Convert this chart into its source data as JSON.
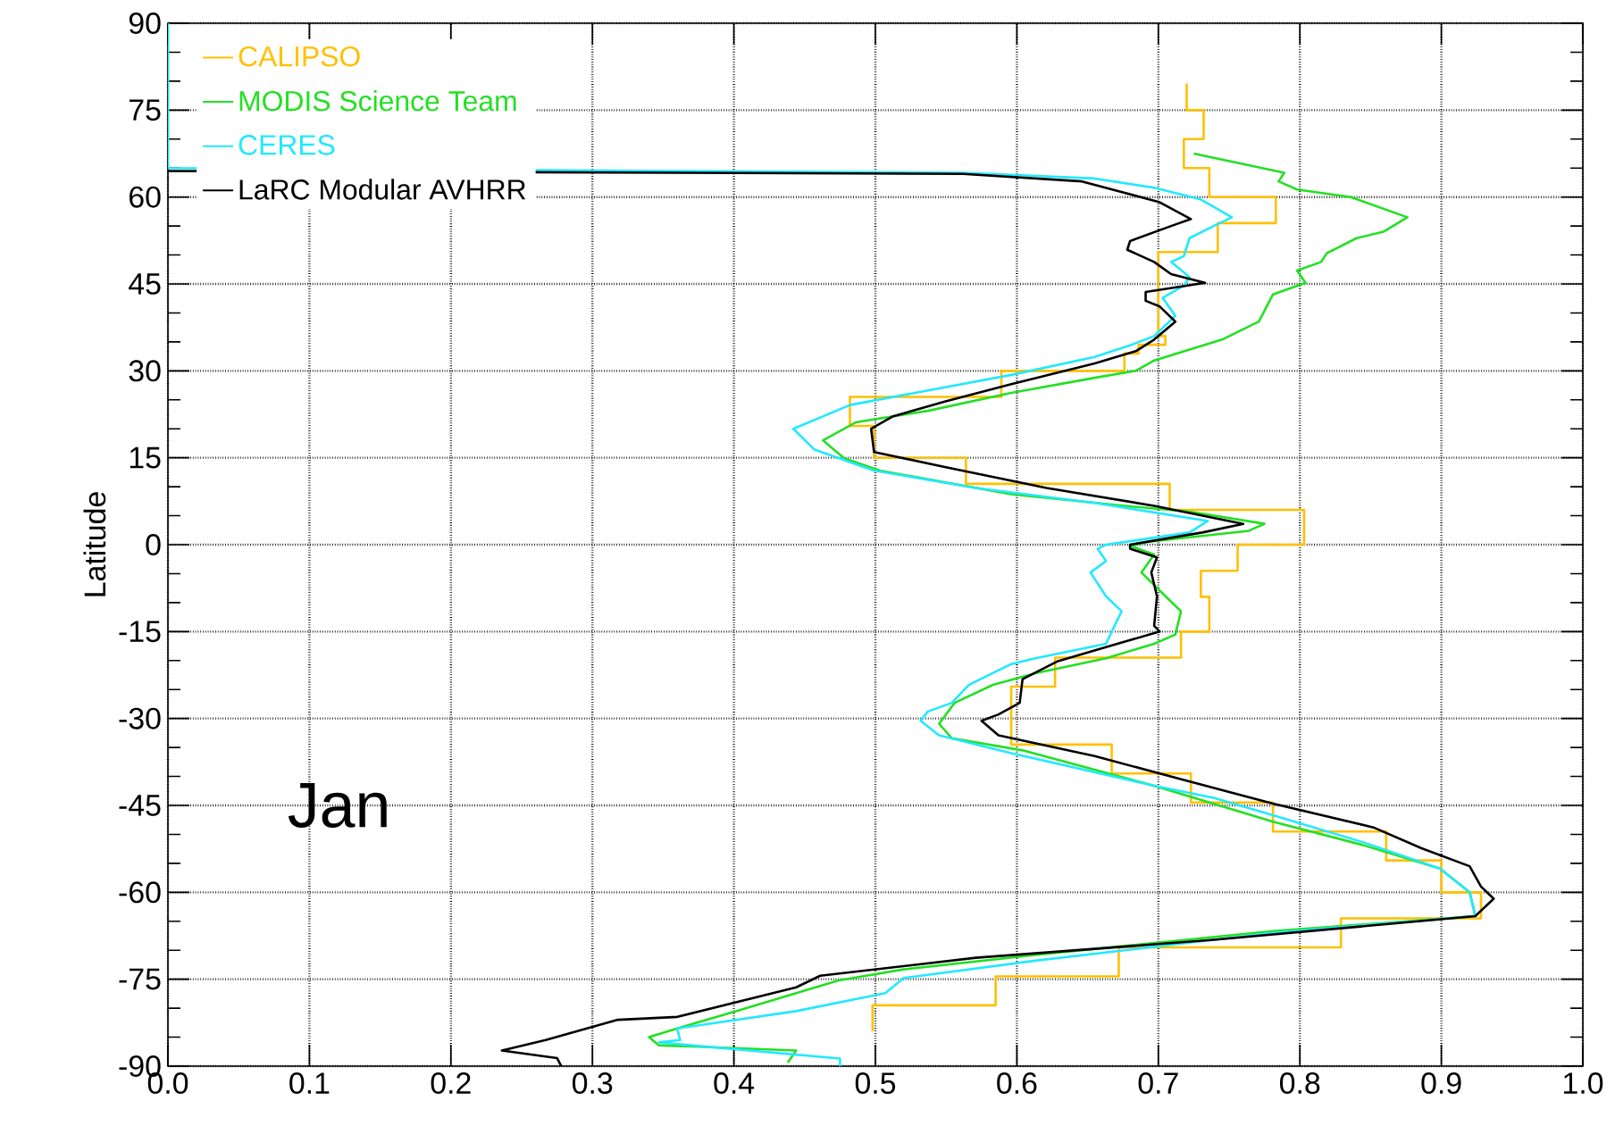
{
  "chart_data": {
    "type": "line",
    "ylabel": "Latitude",
    "annotations": [
      "Jan"
    ],
    "xlim": [
      0,
      1
    ],
    "ylim": [
      -90,
      90
    ],
    "xticks": [
      {
        "value": 0,
        "label": "0.0"
      },
      {
        "value": 0.1,
        "label": "0.1"
      },
      {
        "value": 0.2,
        "label": "0.2"
      },
      {
        "value": 0.3,
        "label": "0.3"
      },
      {
        "value": 0.4,
        "label": "0.4"
      },
      {
        "value": 0.5,
        "label": "0.5"
      },
      {
        "value": 0.6,
        "label": "0.6"
      },
      {
        "value": 0.7,
        "label": "0.7"
      },
      {
        "value": 0.8,
        "label": "0.8"
      },
      {
        "value": 0.9,
        "label": "0.9"
      },
      {
        "value": 1,
        "label": "1.0"
      }
    ],
    "yticks": [
      -90,
      -75,
      -60,
      -45,
      -30,
      -15,
      0,
      15,
      30,
      45,
      60,
      75,
      90
    ],
    "grid": true,
    "legend": "top left",
    "marker": "none",
    "line_style": "solid",
    "series": [
      {
        "name": "CALIPSO",
        "color": "#ffc000",
        "x": [
          0.72,
          0.72,
          0.732,
          0.732,
          0.718,
          0.718,
          0.736,
          0.736,
          0.783,
          0.783,
          0.742,
          0.742,
          0.7,
          0.7,
          0.705,
          0.705,
          0.686,
          0.686,
          0.676,
          0.676,
          0.589,
          0.589,
          0.482,
          0.482,
          0.499,
          0.499,
          0.564,
          0.564,
          0.708,
          0.708,
          0.803,
          0.803,
          0.756,
          0.756,
          0.73,
          0.73,
          0.736,
          0.736,
          0.716,
          0.716,
          0.627,
          0.627,
          0.596,
          0.596,
          0.667,
          0.667,
          0.723,
          0.723,
          0.781,
          0.781,
          0.861,
          0.861,
          0.9,
          0.9,
          0.928,
          0.928,
          0.829,
          0.829,
          0.672,
          0.672,
          0.585,
          0.585,
          0.498,
          0.498
        ],
        "values": [
          79.6,
          75,
          75,
          70,
          70,
          65,
          65,
          60,
          60,
          55.5,
          55.5,
          50.5,
          50.5,
          36,
          36,
          34.5,
          34.5,
          33,
          33,
          30,
          30,
          25.5,
          25.5,
          20.5,
          20.5,
          15,
          15,
          10.5,
          10.5,
          6,
          6,
          0,
          0,
          -4.5,
          -4.5,
          -9,
          -9,
          -15,
          -15,
          -19.5,
          -19.5,
          -24.5,
          -24.5,
          -34.5,
          -34.5,
          -39.5,
          -39.5,
          -44.5,
          -44.5,
          -49.5,
          -49.5,
          -54.5,
          -54.5,
          -60,
          -60,
          -64.5,
          -64.5,
          -69.5,
          -69.5,
          -74.5,
          -74.5,
          -79.5,
          -79.5,
          -84
        ]
      },
      {
        "name": "MODIS Science Team",
        "color": "#22e022",
        "x": [
          0.725,
          0.789,
          0.785,
          0.798,
          0.836,
          0.876,
          0.859,
          0.84,
          0.819,
          0.815,
          0.798,
          0.804,
          0.781,
          0.771,
          0.745,
          0.697,
          0.684,
          0.655,
          0.596,
          0.537,
          0.486,
          0.463,
          0.478,
          0.503,
          0.596,
          0.676,
          0.722,
          0.775,
          0.764,
          0.693,
          0.68,
          0.697,
          0.688,
          0.705,
          0.716,
          0.712,
          0.697,
          0.663,
          0.613,
          0.583,
          0.556,
          0.545,
          0.554,
          0.604,
          0.697,
          0.781,
          0.844,
          0.899,
          0.92,
          0.924,
          0.781,
          0.613,
          0.52,
          0.474,
          0.444,
          0.402,
          0.36,
          0.34,
          0.347,
          0.444,
          0.438
        ],
        "values": [
          67.5,
          64.2,
          62.7,
          61.3,
          60,
          56.5,
          54,
          52.9,
          50.3,
          48.8,
          47.3,
          45.2,
          43.2,
          38.5,
          35.4,
          31.8,
          30,
          28.8,
          26.2,
          23.1,
          21.1,
          18,
          14.9,
          12.8,
          8.7,
          6.7,
          5.7,
          3.6,
          2.4,
          0.5,
          -0.2,
          -1.7,
          -4.8,
          -8.9,
          -11.5,
          -15.5,
          -17.1,
          -19.6,
          -22.2,
          -24.2,
          -27.3,
          -30.9,
          -33.4,
          -35.5,
          -41.6,
          -47.8,
          -51.8,
          -55.9,
          -60,
          -64.1,
          -66.7,
          -70.8,
          -73.3,
          -75.2,
          -77.4,
          -80.5,
          -83.5,
          -85,
          -86.4,
          -87.3,
          -89.4
        ]
      },
      {
        "name": "CERES",
        "color": "#22e8ff",
        "x": [
          0,
          0,
          0.562,
          0.655,
          0.697,
          0.73,
          0.752,
          0.739,
          0.722,
          0.718,
          0.709,
          0.722,
          0.718,
          0.703,
          0.712,
          0.697,
          0.68,
          0.655,
          0.596,
          0.528,
          0.482,
          0.442,
          0.457,
          0.499,
          0.571,
          0.655,
          0.735,
          0.722,
          0.663,
          0.657,
          0.663,
          0.652,
          0.663,
          0.674,
          0.669,
          0.663,
          0.613,
          0.596,
          0.566,
          0.554,
          0.537,
          0.532,
          0.545,
          0.596,
          0.697,
          0.739,
          0.781,
          0.844,
          0.899,
          0.92,
          0.924,
          0.781,
          0.613,
          0.52,
          0.507,
          0.444,
          0.36,
          0.362,
          0.347,
          0.475,
          0.475
        ],
        "values": [
          90,
          65,
          64.2,
          63.2,
          61.6,
          59.6,
          56.5,
          55,
          52.9,
          49.8,
          48.8,
          46.2,
          44.7,
          42.6,
          39.5,
          36,
          34.4,
          32.4,
          29.3,
          26.2,
          24.1,
          20,
          16.4,
          12.8,
          9.8,
          7.2,
          4.1,
          2.1,
          0,
          -0.7,
          -2.8,
          -4.8,
          -8.9,
          -11.5,
          -14,
          -17.1,
          -19.6,
          -20.6,
          -24.2,
          -27.3,
          -28.8,
          -30.4,
          -32.9,
          -36,
          -41.6,
          -43.7,
          -46.7,
          -51.3,
          -55.9,
          -60,
          -64.1,
          -67,
          -71.8,
          -74.8,
          -77.4,
          -80.5,
          -83.5,
          -85.5,
          -85.9,
          -88.7,
          -90
        ]
      },
      {
        "name": "LaRC Modular AVHRR",
        "color": "#000000",
        "x": [
          0,
          0.562,
          0.646,
          0.701,
          0.723,
          0.709,
          0.68,
          0.678,
          0.697,
          0.709,
          0.733,
          0.691,
          0.691,
          0.701,
          0.712,
          0.697,
          0.684,
          0.655,
          0.596,
          0.549,
          0.512,
          0.497,
          0.499,
          0.549,
          0.621,
          0.697,
          0.76,
          0.731,
          0.68,
          0.68,
          0.699,
          0.695,
          0.699,
          0.697,
          0.701,
          0.671,
          0.629,
          0.604,
          0.602,
          0.587,
          0.575,
          0.587,
          0.655,
          0.718,
          0.781,
          0.852,
          0.886,
          0.92,
          0.928,
          0.937,
          0.924,
          0.739,
          0.571,
          0.461,
          0.444,
          0.36,
          0.318,
          0.267,
          0.236,
          0.275,
          0.278
        ],
        "values": [
          64.5,
          64,
          62.7,
          59.1,
          56.2,
          55,
          52.4,
          50.9,
          48.8,
          46.7,
          45.2,
          43.6,
          42.1,
          41.1,
          38.5,
          35.4,
          33.4,
          31.3,
          27.7,
          24.7,
          22.1,
          20,
          16,
          13.4,
          9.8,
          6.7,
          3.6,
          2.1,
          0,
          -0.7,
          -2.2,
          -4.8,
          -8.9,
          -14,
          -15,
          -17.1,
          -20.1,
          -23.2,
          -27.3,
          -29.3,
          -30.4,
          -32.9,
          -36.5,
          -40.6,
          -44.7,
          -48.8,
          -52.4,
          -55.5,
          -59,
          -61.1,
          -64.1,
          -68.2,
          -71.3,
          -74.4,
          -76.4,
          -81.5,
          -82,
          -85.5,
          -87.3,
          -88.6,
          -90
        ]
      }
    ]
  }
}
